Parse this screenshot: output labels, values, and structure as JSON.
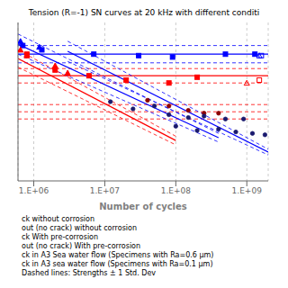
{
  "chart_data": {
    "type": "scatter",
    "title": "Tension (R=-1) SN curves at 20 kHz with different conditi",
    "xlabel": "Number of cycles",
    "log": "x",
    "grid": true,
    "tick_labels": "x",
    "xlim": [
      600000,
      2000000000
    ],
    "ylim": [
      0,
      1.1
    ],
    "xticks": [
      {
        "value": 1000000,
        "label": "1.E+06"
      },
      {
        "value": 10000000,
        "label": "1.E+07"
      },
      {
        "value": 100000000,
        "label": "1.E+08"
      },
      {
        "value": 1000000000,
        "label": "1.E+09"
      }
    ],
    "annotations": [
      "ck without corrosion",
      "out (no crack) without corrosion",
      "ck With pre-corrosion",
      "out (no crack) With pre-corrosion",
      "ck in A3 Sea water flow (Specimens with Ra=0.6 μm)",
      "ck in A3 sea water flow (Specimens with Ra=0.1 μm)",
      "Dashed lines: Strengths ± 1 Std. Dev"
    ],
    "series": [
      {
        "type": "line",
        "color": "blue",
        "line_style": "solid",
        "x": [
          600000,
          2000000000
        ],
        "values": [
          0.88,
          0.88
        ]
      },
      {
        "type": "line",
        "color": "blue",
        "line_style": "dashed",
        "x": [
          600000,
          2000000000
        ],
        "values": [
          0.94,
          0.94
        ]
      },
      {
        "type": "line",
        "color": "blue",
        "line_style": "dashed",
        "x": [
          600000,
          2000000000
        ],
        "values": [
          0.82,
          0.82
        ]
      },
      {
        "type": "line",
        "color": "red",
        "line_style": "solid",
        "x": [
          600000,
          2000000000
        ],
        "values": [
          0.73,
          0.73
        ]
      },
      {
        "type": "line",
        "color": "red",
        "line_style": "dashed",
        "x": [
          600000,
          2000000000
        ],
        "values": [
          0.78,
          0.78
        ]
      },
      {
        "type": "line",
        "color": "red",
        "line_style": "dashed",
        "x": [
          600000,
          2000000000
        ],
        "values": [
          0.68,
          0.68
        ]
      },
      {
        "type": "line",
        "color": "red",
        "line_style": "dashed",
        "x": [
          600000,
          2000000000
        ],
        "values": [
          0.48,
          0.48
        ]
      },
      {
        "type": "line",
        "color": "red",
        "line_style": "dashed",
        "x": [
          600000,
          2000000000
        ],
        "values": [
          0.53,
          0.53
        ]
      },
      {
        "type": "line",
        "color": "red",
        "line_style": "dashed",
        "x": [
          600000,
          2000000000
        ],
        "values": [
          0.43,
          0.43
        ]
      },
      {
        "type": "line",
        "color": "blue",
        "line_style": "solid",
        "x": [
          600000,
          400000000
        ],
        "values": [
          0.95,
          0.3
        ]
      },
      {
        "type": "line",
        "color": "blue",
        "line_style": "dashed",
        "x": [
          600000,
          400000000
        ],
        "values": [
          1.02,
          0.33
        ]
      },
      {
        "type": "line",
        "color": "blue",
        "line_style": "dashed",
        "x": [
          600000,
          400000000
        ],
        "values": [
          0.88,
          0.27
        ]
      },
      {
        "type": "line",
        "color": "blue",
        "line_style": "solid",
        "x": [
          3000000,
          2000000000
        ],
        "values": [
          0.9,
          0.2
        ]
      },
      {
        "type": "line",
        "color": "blue",
        "line_style": "dashed",
        "x": [
          3000000,
          2000000000
        ],
        "values": [
          0.97,
          0.22
        ]
      },
      {
        "type": "line",
        "color": "blue",
        "line_style": "dashed",
        "x": [
          3000000,
          2000000000
        ],
        "values": [
          0.83,
          0.18
        ]
      },
      {
        "type": "line",
        "color": "red",
        "line_style": "solid",
        "x": [
          600000,
          100000000
        ],
        "values": [
          0.85,
          0.28
        ]
      },
      {
        "type": "line",
        "color": "red",
        "line_style": "dashed",
        "x": [
          600000,
          100000000
        ],
        "values": [
          0.91,
          0.31
        ]
      },
      {
        "type": "line",
        "color": "red",
        "line_style": "dashed",
        "x": [
          600000,
          100000000
        ],
        "values": [
          0.79,
          0.25
        ]
      },
      {
        "type": "scatter",
        "color": "blue",
        "marker": "square",
        "x": [
          700000,
          1300000,
          7000000,
          30000000,
          90000000,
          500000000,
          1300000000
        ],
        "values": [
          0.94,
          0.91,
          0.88,
          0.87,
          0.86,
          0.88,
          0.88
        ]
      },
      {
        "type": "scatter",
        "color": "blue",
        "marker": "open_square",
        "x": [
          1600000000
        ],
        "values": [
          0.87
        ]
      },
      {
        "type": "scatter",
        "color": "blue",
        "marker": "triangle",
        "x": [
          650000,
          1200000
        ],
        "values": [
          0.97,
          0.93
        ]
      },
      {
        "type": "scatter",
        "color": "blue",
        "marker": "open_triangle",
        "x": [
          1500000000
        ],
        "values": [
          0.87
        ]
      },
      {
        "type": "scatter",
        "color": "red",
        "marker": "square",
        "x": [
          800000,
          2000000,
          6000000,
          20000000,
          80000000,
          200000000
        ],
        "values": [
          0.88,
          0.77,
          0.73,
          0.7,
          0.68,
          0.72
        ]
      },
      {
        "type": "scatter",
        "color": "red",
        "marker": "open_square",
        "x": [
          1500000000
        ],
        "values": [
          0.7
        ]
      },
      {
        "type": "scatter",
        "color": "red",
        "marker": "triangle",
        "x": [
          650000,
          800000,
          2000000,
          3000000
        ],
        "values": [
          0.91,
          0.87,
          0.8,
          0.75
        ]
      },
      {
        "type": "scatter",
        "color": "red",
        "marker": "open_triangle",
        "x": [
          1000000000
        ],
        "values": [
          0.68
        ]
      },
      {
        "type": "scatter",
        "color": "darkred",
        "marker": "circle",
        "x": [
          40000000,
          80000000,
          150000000,
          250000000,
          400000000
        ],
        "values": [
          0.56,
          0.52,
          0.49,
          0.47,
          0.47
        ]
      },
      {
        "type": "scatter",
        "color": "#1a1a6e",
        "marker": "circle",
        "x": [
          12000000,
          25000000,
          50000000,
          80000000,
          150000000,
          250000000,
          500000000,
          900000000
        ],
        "values": [
          0.55,
          0.5,
          0.52,
          0.46,
          0.44,
          0.45,
          0.43,
          0.43
        ]
      },
      {
        "type": "scatter",
        "color": "#1a1a6e",
        "marker": "circle",
        "x": [
          100000000,
          200000000,
          400000000,
          700000000,
          1200000000,
          1800000000
        ],
        "values": [
          0.38,
          0.35,
          0.36,
          0.34,
          0.33,
          0.32
        ]
      }
    ]
  }
}
